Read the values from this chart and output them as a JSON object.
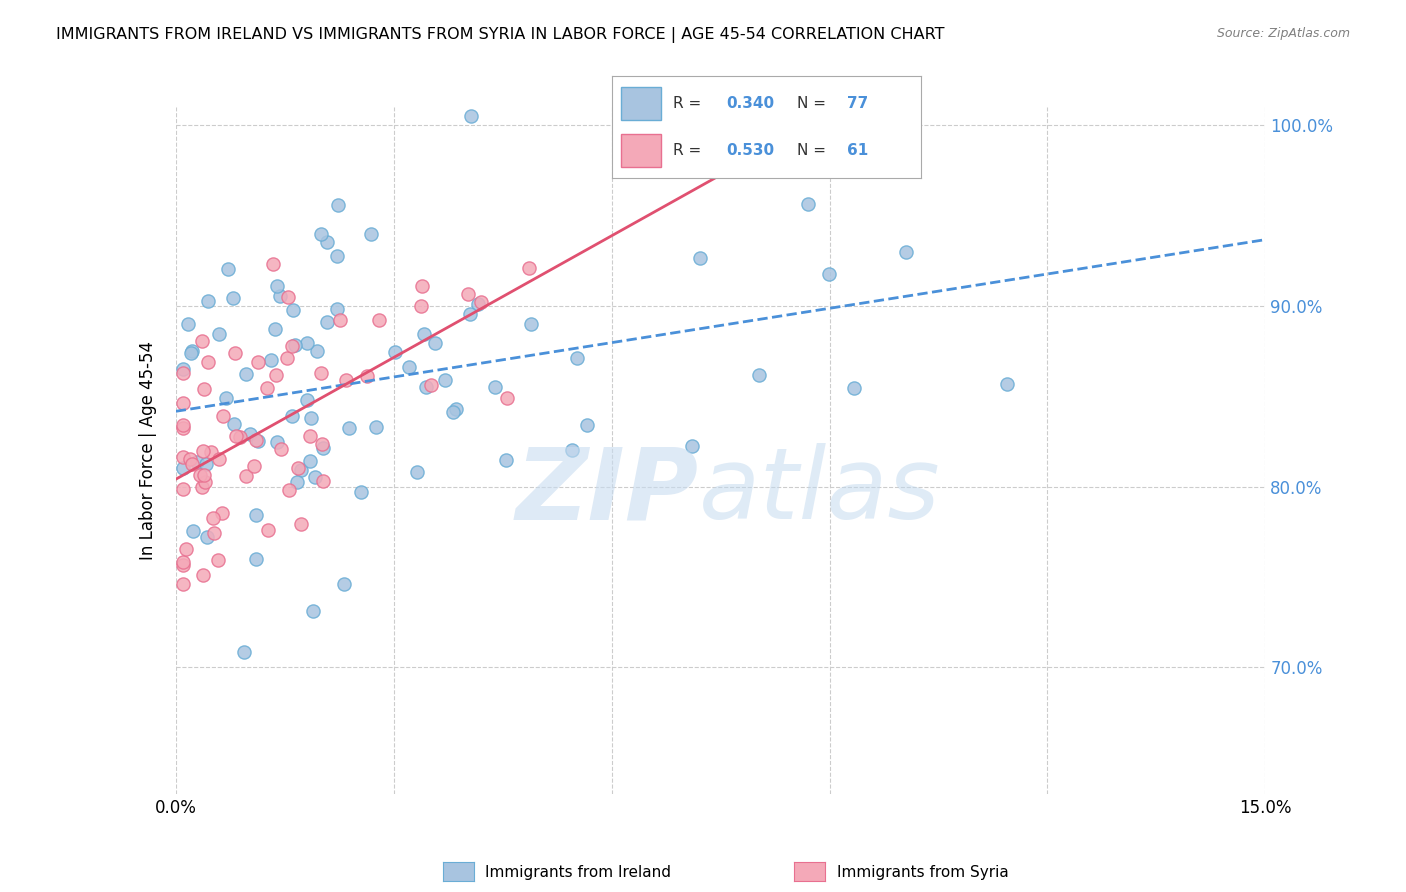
{
  "title": "IMMIGRANTS FROM IRELAND VS IMMIGRANTS FROM SYRIA IN LABOR FORCE | AGE 45-54 CORRELATION CHART",
  "source": "Source: ZipAtlas.com",
  "ylabel": "In Labor Force | Age 45-54",
  "x_min": 0.0,
  "x_max": 0.15,
  "y_min": 0.63,
  "y_max": 1.01,
  "x_ticks": [
    0.0,
    0.03,
    0.06,
    0.09,
    0.12,
    0.15
  ],
  "y_ticks": [
    0.7,
    0.8,
    0.9,
    1.0
  ],
  "y_tick_labels": [
    "70.0%",
    "80.0%",
    "90.0%",
    "100.0%"
  ],
  "ireland_color": "#a8c4e0",
  "ireland_edge_color": "#6aadd5",
  "syria_color": "#f4a9b8",
  "syria_edge_color": "#e87090",
  "ireland_R": 0.34,
  "ireland_N": 77,
  "syria_R": 0.53,
  "syria_N": 61,
  "ireland_line_color": "#4a90d9",
  "ireland_line_style": "--",
  "syria_line_color": "#e05070",
  "syria_line_style": "-"
}
